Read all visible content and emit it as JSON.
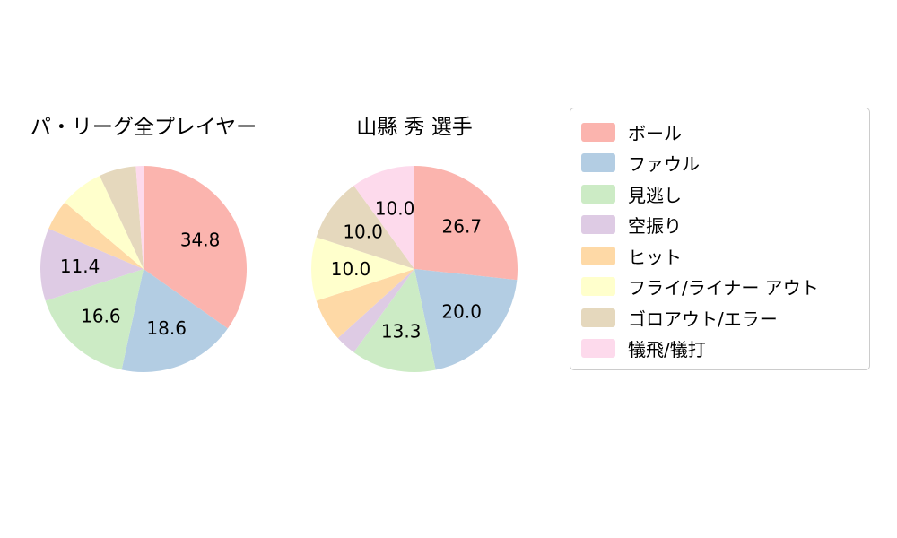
{
  "page": {
    "background_color": "#ffffff"
  },
  "legend": {
    "border_color": "#cccccc",
    "items": [
      {
        "label": "ボール",
        "color": "#fbb4ae"
      },
      {
        "label": "ファウル",
        "color": "#b3cde3"
      },
      {
        "label": "見逃し",
        "color": "#ccebc5"
      },
      {
        "label": "空振り",
        "color": "#decbe4"
      },
      {
        "label": "ヒット",
        "color": "#fed9a6"
      },
      {
        "label": "フライ/ライナー アウト",
        "color": "#ffffcc"
      },
      {
        "label": "ゴロアウト/エラー",
        "color": "#e5d8bd"
      },
      {
        "label": "犠飛/犠打",
        "color": "#fddaec"
      }
    ]
  },
  "chart_data": [
    {
      "type": "pie",
      "title": "パ・リーグ全プレイヤー",
      "categories": [
        "ボール",
        "ファウル",
        "見逃し",
        "空振り",
        "ヒット",
        "フライ/ライナー アウト",
        "ゴロアウト/エラー",
        "犠飛/犠打"
      ],
      "values": [
        34.8,
        18.6,
        16.6,
        11.4,
        4.8,
        6.8,
        5.8,
        1.2
      ],
      "value_labels": [
        "34.8",
        "18.6",
        "16.6",
        "11.4",
        "",
        "",
        "",
        ""
      ],
      "colors": [
        "#fbb4ae",
        "#b3cde3",
        "#ccebc5",
        "#decbe4",
        "#fed9a6",
        "#ffffcc",
        "#e5d8bd",
        "#fddaec"
      ],
      "start_angle_deg": 90,
      "direction": "clockwise",
      "label_color": "#000000",
      "notes": "labels shown only for slices >= 10"
    },
    {
      "type": "pie",
      "title": "山縣 秀 選手",
      "categories": [
        "ボール",
        "ファウル",
        "見逃し",
        "空振り",
        "ヒット",
        "フライ/ライナー アウト",
        "ゴロアウト/エラー",
        "犠飛/犠打"
      ],
      "values": [
        26.7,
        20.0,
        13.3,
        3.3,
        6.7,
        10.0,
        10.0,
        10.0
      ],
      "value_labels": [
        "26.7",
        "20.0",
        "13.3",
        "",
        "",
        "10.0",
        "10.0",
        "10.0"
      ],
      "colors": [
        "#fbb4ae",
        "#b3cde3",
        "#ccebc5",
        "#decbe4",
        "#fed9a6",
        "#ffffcc",
        "#e5d8bd",
        "#fddaec"
      ],
      "start_angle_deg": 90,
      "direction": "clockwise",
      "label_color": "#000000",
      "notes": "labels shown only for slices >= 10"
    }
  ]
}
